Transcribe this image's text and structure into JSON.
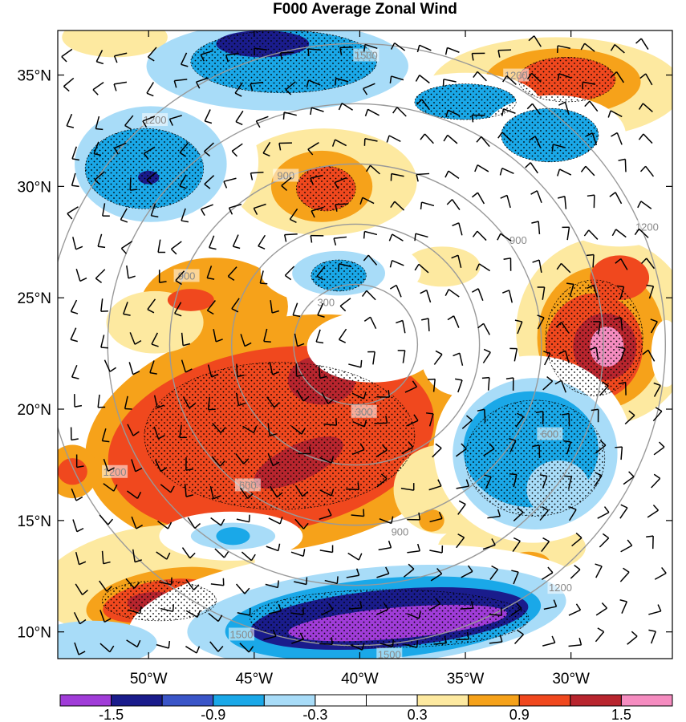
{
  "chart_data": {
    "type": "heatmap",
    "title": "F000 Average Zonal Wind",
    "x_range_lon": [
      -54.3,
      -25.2
    ],
    "y_range_lat": [
      8.8,
      37.0
    ],
    "x_ticks": [
      {
        "value": -50,
        "label": "50°W"
      },
      {
        "value": -45,
        "label": "45°W"
      },
      {
        "value": -40,
        "label": "40°W"
      },
      {
        "value": -35,
        "label": "35°W"
      },
      {
        "value": -30,
        "label": "30°W"
      }
    ],
    "y_ticks": [
      {
        "value": 35,
        "label": "35°N"
      },
      {
        "value": 30,
        "label": "30°N"
      },
      {
        "value": 25,
        "label": "25°N"
      },
      {
        "value": 20,
        "label": "20°N"
      },
      {
        "value": 15,
        "label": "15°N"
      },
      {
        "value": 10,
        "label": "10°N"
      }
    ],
    "colorbar": {
      "levels": [
        -1.8,
        -1.5,
        -1.2,
        -0.9,
        -0.6,
        -0.3,
        0,
        0.3,
        0.6,
        0.9,
        1.2,
        1.5,
        1.8
      ],
      "labels": [
        {
          "value": -1.5,
          "label": "-1.5"
        },
        {
          "value": -0.9,
          "label": "-0.9"
        },
        {
          "value": -0.3,
          "label": "-0.3"
        },
        {
          "value": 0.3,
          "label": "0.3"
        },
        {
          "value": 0.9,
          "label": "0.9"
        },
        {
          "value": 1.5,
          "label": "1.5"
        }
      ],
      "colors": [
        "#a03cd8",
        "#1a1c8c",
        "#3a55c8",
        "#1aa8e8",
        "#a8dcf8",
        "#ffffff",
        "#ffffff",
        "#fde9a0",
        "#f6a21a",
        "#f0481e",
        "#b8252e",
        "#f58cc0"
      ]
    },
    "range_rings": {
      "center_lon": -40.2,
      "center_lat": 22.9,
      "radii": [
        300,
        600,
        900,
        1200,
        1500
      ],
      "labels": [
        {
          "text": "300",
          "lon": -41.6,
          "lat": 24.8
        },
        {
          "text": "300",
          "lon": -39.8,
          "lat": 19.9
        },
        {
          "text": "600",
          "lon": -31.0,
          "lat": 18.9
        },
        {
          "text": "600",
          "lon": -45.3,
          "lat": 16.6
        },
        {
          "text": "900",
          "lon": -43.5,
          "lat": 30.5
        },
        {
          "text": "900",
          "lon": -48.2,
          "lat": 26.0
        },
        {
          "text": "900",
          "lon": -32.5,
          "lat": 27.6
        },
        {
          "text": "900",
          "lon": -38.1,
          "lat": 14.5
        },
        {
          "text": "1200",
          "lon": -49.7,
          "lat": 33.0
        },
        {
          "text": "1200",
          "lon": -51.6,
          "lat": 17.2
        },
        {
          "text": "1200",
          "lon": -32.6,
          "lat": 35.0
        },
        {
          "text": "1200",
          "lon": -26.4,
          "lat": 28.2
        },
        {
          "text": "1200",
          "lon": -30.5,
          "lat": 12.0
        },
        {
          "text": "1500",
          "lon": -45.6,
          "lat": 9.9
        },
        {
          "text": "1500",
          "lon": -38.6,
          "lat": 9.0
        },
        {
          "text": "1500",
          "lon": -39.7,
          "lat": 35.9
        }
      ]
    },
    "fields": [
      {
        "lon": -43.6,
        "lat": 18.9,
        "rx": 9.5,
        "ry": 5.2,
        "rot": -10,
        "value": 0.6
      },
      {
        "lon": -44.2,
        "lat": 18.6,
        "rx": 7.8,
        "ry": 4.1,
        "rot": -10,
        "value": 0.9
      },
      {
        "lon": -43.9,
        "lat": 19.2,
        "rx": 6.5,
        "ry": 3.5,
        "rot": -10,
        "value": 1.05
      },
      {
        "lon": -41.8,
        "lat": 21.3,
        "rx": 1.6,
        "ry": 1.1,
        "rot": 0,
        "value": 1.3
      },
      {
        "lon": -42.9,
        "lat": 17.6,
        "rx": 2.3,
        "ry": 0.8,
        "rot": -25,
        "value": 1.3
      },
      {
        "lon": -46.9,
        "lat": 24.6,
        "rx": 3.5,
        "ry": 2.2,
        "rot": 0,
        "value": 0.6
      },
      {
        "lon": -49.7,
        "lat": 23.9,
        "rx": 2.3,
        "ry": 1.4,
        "rot": 0,
        "value": 0.3
      },
      {
        "lon": -48.0,
        "lat": 24.9,
        "rx": 1.1,
        "ry": 0.5,
        "rot": 0,
        "value": 1.05
      },
      {
        "lon": -41.7,
        "lat": 30.2,
        "rx": 4.4,
        "ry": 2.4,
        "rot": 0,
        "value": 0.3
      },
      {
        "lon": -41.8,
        "lat": 30.0,
        "rx": 2.4,
        "ry": 1.6,
        "rot": 0,
        "value": 0.6
      },
      {
        "lon": -41.6,
        "lat": 29.9,
        "rx": 1.4,
        "ry": 1.0,
        "rot": 0,
        "value": 1.05
      },
      {
        "lon": -30.7,
        "lat": 34.4,
        "rx": 6.0,
        "ry": 2.3,
        "rot": 0,
        "value": 0.3
      },
      {
        "lon": -30.4,
        "lat": 34.7,
        "rx": 3.7,
        "ry": 1.5,
        "rot": 0,
        "value": 0.6
      },
      {
        "lon": -30.2,
        "lat": 34.8,
        "rx": 2.3,
        "ry": 1.0,
        "rot": 0,
        "value": 1.05
      },
      {
        "lon": -28.4,
        "lat": 23.5,
        "rx": 4.2,
        "ry": 4.2,
        "rot": 0,
        "value": 0.3
      },
      {
        "lon": -28.6,
        "lat": 23.2,
        "rx": 3.0,
        "ry": 3.2,
        "rot": 0,
        "value": 0.6
      },
      {
        "lon": -28.9,
        "lat": 22.8,
        "rx": 2.3,
        "ry": 2.4,
        "rot": 0,
        "value": 0.9
      },
      {
        "lon": -27.7,
        "lat": 25.9,
        "rx": 1.4,
        "ry": 1.0,
        "rot": 0,
        "value": 0.9
      },
      {
        "lon": -28.4,
        "lat": 22.8,
        "rx": 1.5,
        "ry": 1.5,
        "rot": 0,
        "value": 1.3
      },
      {
        "lon": -28.3,
        "lat": 22.8,
        "rx": 0.8,
        "ry": 0.9,
        "rot": 0,
        "value": 1.6
      },
      {
        "lon": -50.1,
        "lat": 12.4,
        "rx": 5.2,
        "ry": 2.3,
        "rot": -10,
        "value": 0.3
      },
      {
        "lon": -49.3,
        "lat": 11.5,
        "rx": 3.7,
        "ry": 1.3,
        "rot": -10,
        "value": 0.6
      },
      {
        "lon": -49.5,
        "lat": 11.4,
        "rx": 2.7,
        "ry": 0.9,
        "rot": -10,
        "value": 0.9
      },
      {
        "lon": -49.6,
        "lat": 11.3,
        "rx": 1.4,
        "ry": 0.5,
        "rot": 0,
        "value": 1.3
      },
      {
        "lon": -53.6,
        "lat": 17.2,
        "rx": 1.2,
        "ry": 1.2,
        "rot": 0,
        "value": 0.6
      },
      {
        "lon": -53.6,
        "lat": 17.2,
        "rx": 0.7,
        "ry": 0.6,
        "rot": 0,
        "value": 0.9
      },
      {
        "lon": -36.1,
        "lat": 16.4,
        "rx": 2.3,
        "ry": 2.0,
        "rot": 0,
        "value": 0.3
      },
      {
        "lon": -36.6,
        "lat": 15.0,
        "rx": 0.6,
        "ry": 0.5,
        "rot": 0,
        "value": 0.6
      },
      {
        "lon": -32.8,
        "lat": 13.8,
        "rx": 3.5,
        "ry": 1.3,
        "rot": 0,
        "value": 0.3
      },
      {
        "lon": -32.0,
        "lat": 13.1,
        "rx": 1.0,
        "ry": 0.5,
        "rot": 0,
        "value": 0.6
      },
      {
        "lon": -36.1,
        "lat": 26.4,
        "rx": 1.8,
        "ry": 0.9,
        "rot": 0,
        "value": 0.3
      },
      {
        "lon": -51.6,
        "lat": 36.7,
        "rx": 2.5,
        "ry": 0.9,
        "rot": 0,
        "value": 0.3
      },
      {
        "lon": -40.0,
        "lat": 10.8,
        "rx": 11.0,
        "ry": 3.0,
        "rot": -5,
        "value": -0.3
      },
      {
        "lon": -39.2,
        "lat": 10.7,
        "rx": 9.0,
        "ry": 2.2,
        "rot": -5,
        "value": -0.6
      },
      {
        "lon": -38.9,
        "lat": 10.6,
        "rx": 7.5,
        "ry": 1.8,
        "rot": -5,
        "value": -0.9
      },
      {
        "lon": -38.6,
        "lat": 10.6,
        "rx": 6.6,
        "ry": 1.3,
        "rot": -5,
        "value": -1.3
      },
      {
        "lon": -38.2,
        "lat": 10.4,
        "rx": 5.2,
        "ry": 0.7,
        "rot": -5,
        "value": -1.6
      },
      {
        "lon": -31.8,
        "lat": 18.2,
        "rx": 4.7,
        "ry": 4.2,
        "rot": 0,
        "value": -0.3
      },
      {
        "lon": -31.7,
        "lat": 18.0,
        "rx": 3.9,
        "ry": 3.4,
        "rot": 0,
        "value": -0.6
      },
      {
        "lon": -31.9,
        "lat": 18.2,
        "rx": 3.2,
        "ry": 2.6,
        "rot": 0,
        "value": -0.9
      },
      {
        "lon": -30.6,
        "lat": 16.4,
        "rx": 1.5,
        "ry": 1.3,
        "rot": 0,
        "value": -0.6
      },
      {
        "lon": -49.6,
        "lat": 31.1,
        "rx": 4.8,
        "ry": 3.6,
        "rot": 0,
        "value": -0.3
      },
      {
        "lon": -49.9,
        "lat": 31.0,
        "rx": 3.6,
        "ry": 2.6,
        "rot": 0,
        "value": -0.6
      },
      {
        "lon": -50.2,
        "lat": 30.8,
        "rx": 2.8,
        "ry": 1.8,
        "rot": 0,
        "value": -0.9
      },
      {
        "lon": -50.0,
        "lat": 30.4,
        "rx": 0.5,
        "ry": 0.3,
        "rot": 0,
        "value": -1.3
      },
      {
        "lon": -43.9,
        "lat": 35.4,
        "rx": 6.2,
        "ry": 2.0,
        "rot": 0,
        "value": -0.6
      },
      {
        "lon": -43.6,
        "lat": 35.6,
        "rx": 4.4,
        "ry": 1.4,
        "rot": 0,
        "value": -0.9
      },
      {
        "lon": -44.6,
        "lat": 36.4,
        "rx": 2.2,
        "ry": 0.6,
        "rot": 0,
        "value": -1.3
      },
      {
        "lon": -35.0,
        "lat": 33.8,
        "rx": 3.5,
        "ry": 1.3,
        "rot": 0,
        "value": -0.3
      },
      {
        "lon": -35.0,
        "lat": 33.8,
        "rx": 2.4,
        "ry": 0.8,
        "rot": 0,
        "value": -0.9
      },
      {
        "lon": -30.8,
        "lat": 32.3,
        "rx": 3.4,
        "ry": 1.8,
        "rot": 0,
        "value": -0.3
      },
      {
        "lon": -31.0,
        "lat": 32.3,
        "rx": 2.3,
        "ry": 1.2,
        "rot": 0,
        "value": -0.9
      },
      {
        "lon": -40.9,
        "lat": 26.2,
        "rx": 3.8,
        "ry": 1.6,
        "rot": 0,
        "value": -0.3
      },
      {
        "lon": -41.0,
        "lat": 26.1,
        "rx": 2.2,
        "ry": 1.0,
        "rot": 0,
        "value": -0.6
      },
      {
        "lon": -41.0,
        "lat": 26.0,
        "rx": 1.3,
        "ry": 0.7,
        "rot": 0,
        "value": -0.9
      },
      {
        "lon": -46.1,
        "lat": 14.3,
        "rx": 3.4,
        "ry": 1.1,
        "rot": 0,
        "value": -0.3
      },
      {
        "lon": -46.0,
        "lat": 14.3,
        "rx": 2.0,
        "ry": 0.6,
        "rot": 0,
        "value": -0.6
      },
      {
        "lon": -46.0,
        "lat": 14.3,
        "rx": 0.8,
        "ry": 0.4,
        "rot": 0,
        "value": -0.9
      },
      {
        "lon": -52.6,
        "lat": 9.5,
        "rx": 3.0,
        "ry": 1.0,
        "rot": 0,
        "value": -0.6
      },
      {
        "lon": -27.7,
        "lat": 28.6,
        "rx": 2.8,
        "ry": 1.3,
        "rot": 0,
        "value": -0.3
      },
      {
        "lon": -35.3,
        "lat": 22.4,
        "rx": 1.8,
        "ry": 1.8,
        "rot": 0,
        "value": -0.3
      },
      {
        "lon": -39.4,
        "lat": 22.8,
        "rx": 3.1,
        "ry": 1.6,
        "rot": 0,
        "value": -0.3
      },
      {
        "lon": -25.5,
        "lat": 22.5,
        "rx": 0.7,
        "ry": 1.5,
        "rot": 0,
        "value": -0.3
      }
    ],
    "stipple_regions": [
      {
        "lon": -43.8,
        "lat": 18.8,
        "rx": 6.4,
        "ry": 3.3
      },
      {
        "lon": -28.9,
        "lat": 23.2,
        "rx": 2.3,
        "ry": 2.6
      },
      {
        "lon": -38.6,
        "lat": 10.6,
        "rx": 6.6,
        "ry": 1.3
      },
      {
        "lon": -31.7,
        "lat": 17.8,
        "rx": 3.3,
        "ry": 2.6
      },
      {
        "lon": -50.2,
        "lat": 30.8,
        "rx": 2.8,
        "ry": 1.8
      },
      {
        "lon": -43.6,
        "lat": 35.6,
        "rx": 4.4,
        "ry": 1.4
      },
      {
        "lon": -41.6,
        "lat": 29.9,
        "rx": 1.4,
        "ry": 1.0
      },
      {
        "lon": -30.2,
        "lat": 34.8,
        "rx": 2.3,
        "ry": 1.0
      },
      {
        "lon": -49.5,
        "lat": 11.4,
        "rx": 2.7,
        "ry": 0.9
      },
      {
        "lon": -41.0,
        "lat": 26.0,
        "rx": 1.3,
        "ry": 0.7
      },
      {
        "lon": -35.0,
        "lat": 33.8,
        "rx": 2.4,
        "ry": 0.8
      },
      {
        "lon": -31.0,
        "lat": 32.3,
        "rx": 2.3,
        "ry": 1.2
      }
    ],
    "wind_barbs": {
      "lon_start": -53.5,
      "lon_step": 1.3,
      "lat_start": 9.5,
      "lat_step": 1.4
    }
  }
}
